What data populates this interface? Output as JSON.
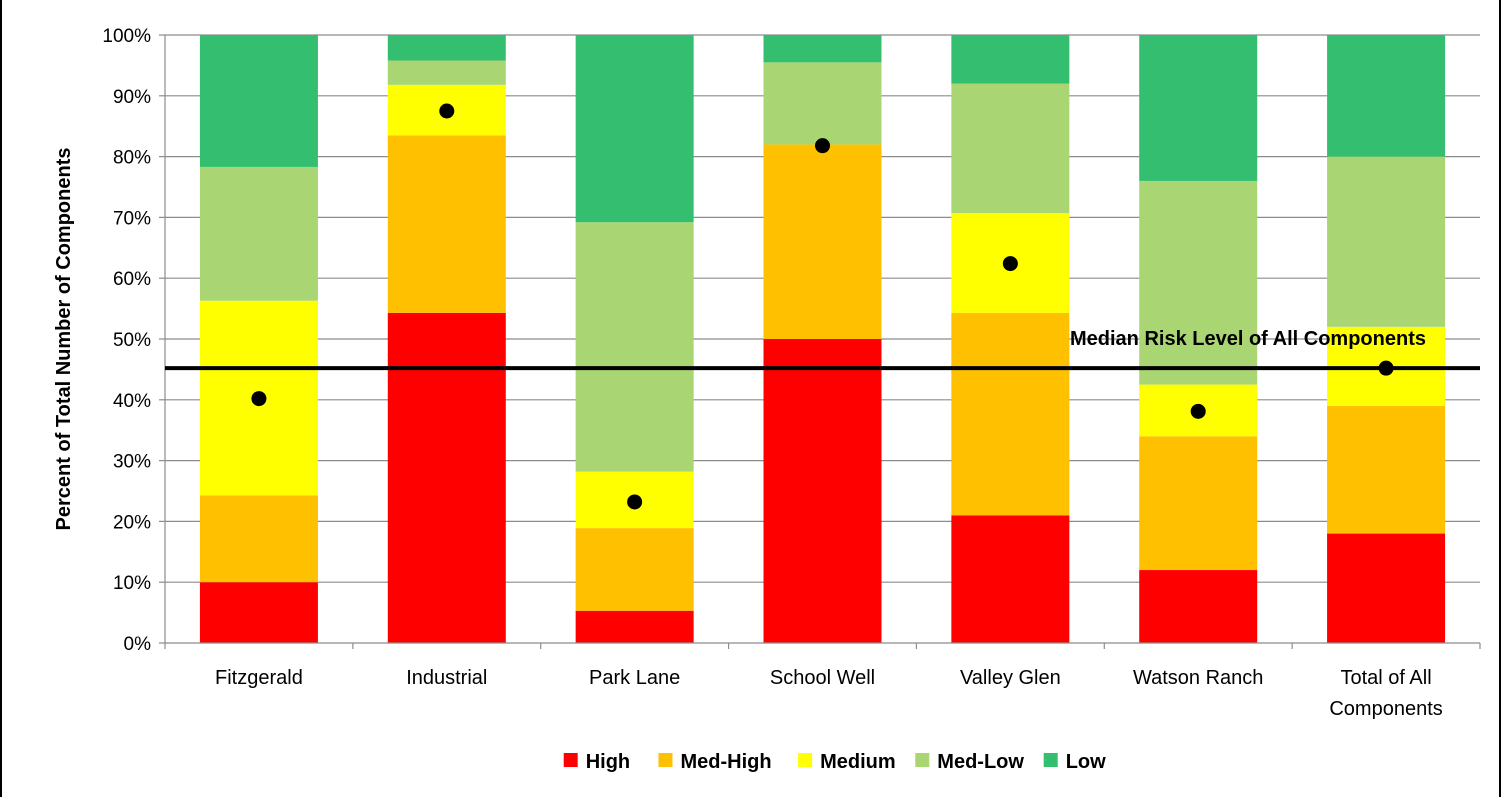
{
  "chart_data": {
    "type": "bar",
    "stacked": true,
    "percent_stacked": true,
    "title": "",
    "xlabel": "",
    "ylabel": "Percent of Total Number of Components",
    "ylim": [
      0,
      100
    ],
    "yticks": [
      "0%",
      "10%",
      "20%",
      "30%",
      "40%",
      "50%",
      "60%",
      "70%",
      "80%",
      "90%",
      "100%"
    ],
    "grid": true,
    "legend_position": "bottom",
    "categories": [
      [
        "Fitzgerald"
      ],
      [
        "Industrial"
      ],
      [
        "Park Lane"
      ],
      [
        "School Well"
      ],
      [
        "Valley Glen"
      ],
      [
        "Watson Ranch"
      ],
      [
        "Total of All",
        "Components"
      ]
    ],
    "series": [
      {
        "name": "High",
        "color": "#FF0000",
        "values": [
          10,
          54.3,
          5.3,
          50,
          21,
          12,
          18
        ]
      },
      {
        "name": "Med-High",
        "color": "#FFC000",
        "values": [
          14.3,
          29.2,
          13.6,
          32,
          33.3,
          22,
          21
        ]
      },
      {
        "name": "Medium",
        "color": "#FFFF00",
        "values": [
          32,
          8.3,
          9.3,
          0,
          16.4,
          8.5,
          13
        ]
      },
      {
        "name": "Med-Low",
        "color": "#A9D672",
        "values": [
          22,
          4,
          41,
          13.5,
          21.3,
          33.5,
          28
        ]
      },
      {
        "name": "Low",
        "color": "#33BF6F",
        "values": [
          21.7,
          4.2,
          30.8,
          4.5,
          8,
          24,
          20
        ]
      }
    ],
    "markers": {
      "style": "black dot",
      "values": [
        40.2,
        87.5,
        23.2,
        81.8,
        62.4,
        38.1,
        45.2
      ]
    },
    "reference_line": {
      "value": 45.2,
      "label": "Median Risk Level of All Components",
      "color": "#000000"
    }
  }
}
